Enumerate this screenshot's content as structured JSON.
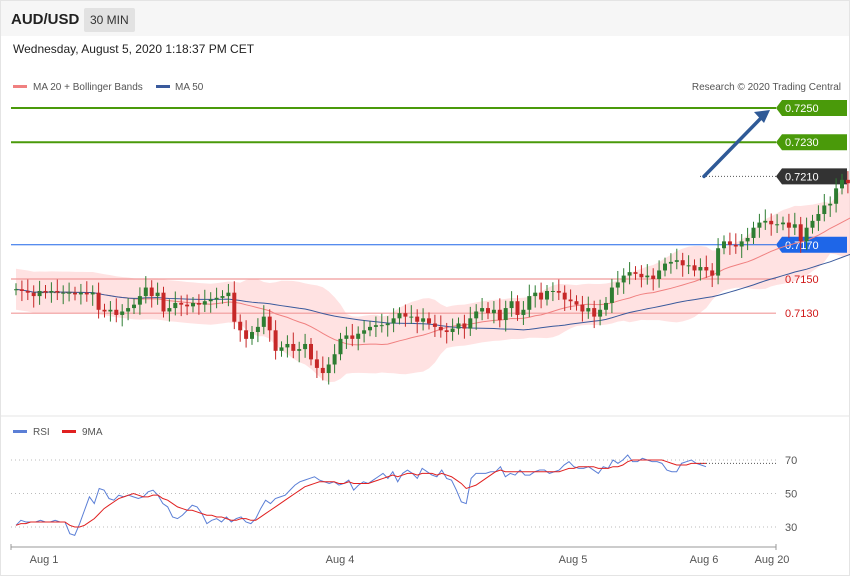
{
  "header": {
    "symbol": "AUD/USD",
    "timeframe": "30 MIN",
    "datetime": "Wednesday, August 5, 2020 1:18:37 PM CET"
  },
  "colors": {
    "ma20": "#f08080",
    "ma50": "#3a5a9c",
    "band_fill": "#ffd6d6",
    "up_candle": "#2e7d32",
    "down_candle": "#c62828",
    "resistance": "#4a9a0a",
    "support_blue": "#1e66e8",
    "support_red": "#f09a9a",
    "current": "#333333",
    "arrow": "#2f5a97",
    "rsi": "#5b7fd6",
    "rsi_ma": "#e02020"
  },
  "chart_data": [
    {
      "type": "candlestick",
      "legend": [
        "MA 20 + Bollinger Bands",
        "MA 50"
      ],
      "legend_placement": "top-left",
      "credit": "Research © 2020 Trading Central",
      "x_ticks": [
        "Aug 1",
        "Aug 4",
        "Aug 5",
        "Aug 6",
        "Aug 20"
      ],
      "ylim": [
        0.7079,
        0.7262
      ],
      "levels": [
        {
          "value": 0.725,
          "label": "0.7250",
          "style": "resistance"
        },
        {
          "value": 0.723,
          "label": "0.7230",
          "style": "resistance"
        },
        {
          "value": 0.721,
          "label": "0.7210",
          "style": "current"
        },
        {
          "value": 0.717,
          "label": "0.7170",
          "style": "support_blue"
        },
        {
          "value": 0.715,
          "label": "0.7150",
          "style": "support_red"
        },
        {
          "value": 0.713,
          "label": "0.7130",
          "style": "support_red"
        }
      ],
      "forecast_arrow": {
        "from": 0.721,
        "to": 0.725
      },
      "closes": [
        0.7144,
        0.7143,
        0.7142,
        0.714,
        0.7143,
        0.7142,
        0.7143,
        0.7142,
        0.7142,
        0.7142,
        0.7141,
        0.7142,
        0.7141,
        0.7142,
        0.7132,
        0.7131,
        0.7132,
        0.7129,
        0.7131,
        0.7133,
        0.7135,
        0.714,
        0.7145,
        0.714,
        0.7142,
        0.7131,
        0.7133,
        0.7136,
        0.7135,
        0.7134,
        0.7136,
        0.7135,
        0.7137,
        0.7138,
        0.7139,
        0.714,
        0.7142,
        0.7125,
        0.712,
        0.7115,
        0.7119,
        0.7122,
        0.7128,
        0.712,
        0.7108,
        0.711,
        0.7112,
        0.7108,
        0.7109,
        0.7112,
        0.7103,
        0.7098,
        0.7095,
        0.71,
        0.7106,
        0.7115,
        0.7117,
        0.7115,
        0.7118,
        0.712,
        0.7122,
        0.7123,
        0.7123,
        0.7124,
        0.7127,
        0.713,
        0.7128,
        0.7128,
        0.7125,
        0.7127,
        0.7124,
        0.7122,
        0.712,
        0.7119,
        0.7121,
        0.7124,
        0.7121,
        0.7127,
        0.7131,
        0.7133,
        0.713,
        0.7132,
        0.7126,
        0.7133,
        0.7137,
        0.7129,
        0.7132,
        0.714,
        0.7142,
        0.7138,
        0.7143,
        0.7143,
        0.7142,
        0.7138,
        0.7137,
        0.7135,
        0.7131,
        0.7133,
        0.7128,
        0.7132,
        0.7136,
        0.7145,
        0.7148,
        0.7152,
        0.7154,
        0.7153,
        0.7151,
        0.7152,
        0.715,
        0.7155,
        0.7159,
        0.716,
        0.7161,
        0.7158,
        0.7158,
        0.7155,
        0.7157,
        0.7155,
        0.7152,
        0.7168,
        0.7172,
        0.717,
        0.7169,
        0.7172,
        0.7174,
        0.718,
        0.7183,
        0.7184,
        0.7182,
        0.7182,
        0.7183,
        0.718,
        0.7182,
        0.7172,
        0.718,
        0.7184,
        0.7188,
        0.7193,
        0.7194,
        0.7203,
        0.7208,
        0.7206,
        0.7206
      ],
      "rsi": {
        "legend": [
          "RSI",
          "9MA"
        ],
        "ylim": [
          20,
          80
        ],
        "ticks": [
          30,
          50,
          70
        ],
        "values": [
          31,
          34,
          33,
          33,
          33,
          34,
          33,
          33,
          34,
          33,
          33,
          26,
          25,
          32,
          40,
          48,
          44,
          53,
          52,
          47,
          46,
          49,
          48,
          49,
          48,
          47,
          48,
          51,
          52,
          49,
          44,
          42,
          36,
          35,
          37,
          40,
          43,
          42,
          38,
          32,
          34,
          35,
          33,
          36,
          33,
          35,
          36,
          33,
          32,
          35,
          41,
          46,
          44,
          47,
          48,
          49,
          52,
          55,
          57,
          58,
          59,
          60,
          58,
          57,
          56,
          57,
          55,
          56,
          58,
          52,
          55,
          57,
          56,
          58,
          60,
          62,
          59,
          63,
          57,
          62,
          64,
          62,
          59,
          65,
          63,
          61,
          60,
          64,
          59,
          58,
          52,
          45,
          44,
          59,
          62,
          62,
          62,
          63,
          63,
          66,
          60,
          62,
          61,
          64,
          61,
          61,
          63,
          64,
          64,
          62,
          63,
          64,
          67,
          69,
          66,
          65,
          65,
          66,
          64,
          62,
          66,
          65,
          70,
          68,
          70,
          73,
          69,
          69,
          71,
          70,
          69,
          69,
          68,
          64,
          63,
          63,
          68,
          69,
          70,
          68,
          67,
          66
        ],
        "ma_values": [
          31,
          32,
          32,
          33,
          33,
          33,
          33,
          33,
          33,
          33,
          33,
          31,
          30,
          30,
          31,
          33,
          35,
          38,
          41,
          43,
          45,
          47,
          48,
          49,
          50,
          49,
          48,
          48,
          49,
          49,
          47,
          46,
          44,
          42,
          41,
          40,
          40,
          39,
          38,
          37,
          37,
          36,
          36,
          35,
          34,
          34,
          35,
          35,
          34,
          34,
          36,
          38,
          40,
          42,
          44,
          46,
          48,
          50,
          52,
          54,
          55,
          56,
          57,
          57,
          57,
          57,
          56,
          56,
          57,
          56,
          56,
          56,
          56,
          57,
          58,
          59,
          60,
          61,
          60,
          61,
          62,
          62,
          61,
          62,
          62,
          62,
          61,
          62,
          61,
          60,
          58,
          56,
          53,
          54,
          55,
          57,
          59,
          61,
          63,
          64,
          63,
          63,
          63,
          63,
          63,
          63,
          63,
          63,
          63,
          63,
          63,
          63,
          64,
          65,
          65,
          66,
          66,
          66,
          66,
          65,
          65,
          65,
          66,
          66,
          67,
          69,
          70,
          70,
          70,
          70,
          70,
          70,
          70,
          69,
          68,
          67,
          67,
          67,
          68,
          68,
          68,
          68
        ]
      }
    }
  ]
}
